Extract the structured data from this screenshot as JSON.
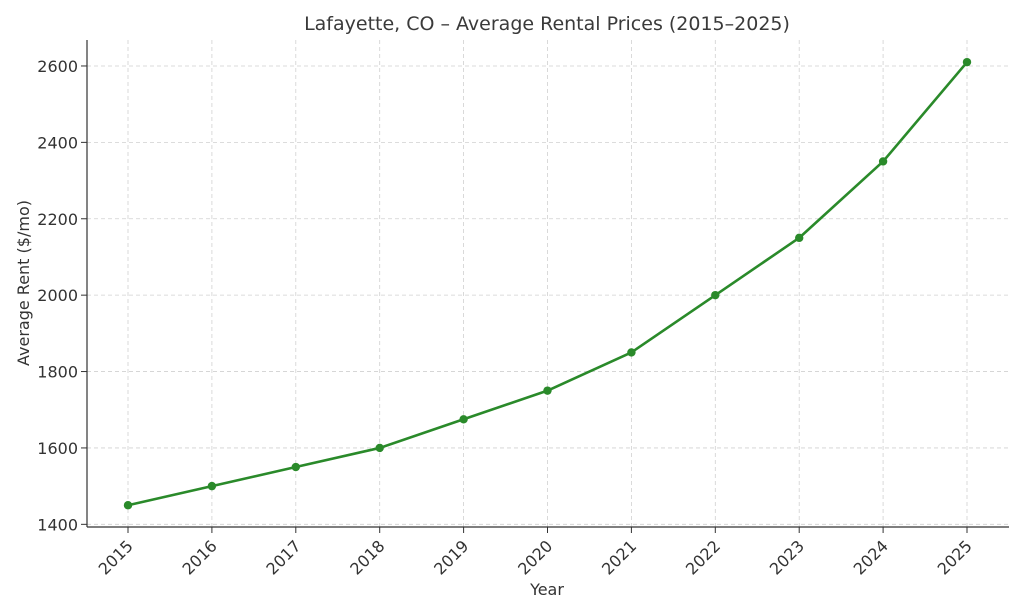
{
  "chart_data": {
    "type": "line",
    "title": "Lafayette, CO – Average Rental Prices (2015–2025)",
    "xlabel": "Year",
    "ylabel": "Average Rent ($/mo)",
    "categories": [
      "2015",
      "2016",
      "2017",
      "2018",
      "2019",
      "2020",
      "2021",
      "2022",
      "2023",
      "2024",
      "2025"
    ],
    "series": [
      {
        "values": [
          1450,
          1500,
          1550,
          1600,
          1675,
          1750,
          1850,
          2000,
          2150,
          2350,
          2610
        ]
      }
    ],
    "yticks": [
      1400,
      1600,
      1800,
      2000,
      2200,
      2400,
      2600
    ],
    "ylim": [
      1393,
      2668
    ],
    "grid": true,
    "color": "#2a8a2a"
  }
}
